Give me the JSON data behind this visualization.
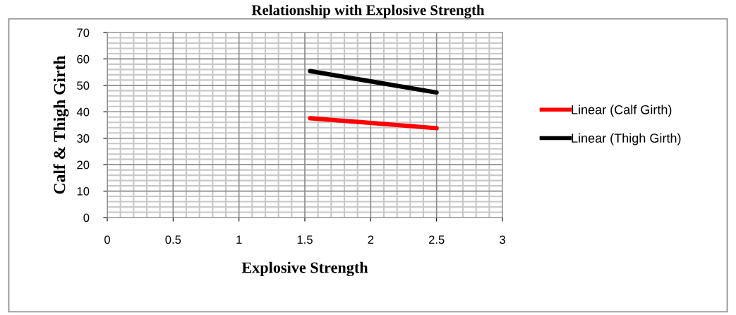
{
  "chart_data": {
    "type": "line",
    "title": "Relationship with Explosive Strength",
    "xlabel": "Explosive Strength",
    "ylabel": "Calf & Thigh Girth",
    "x": [
      1.54,
      2.5
    ],
    "series": [
      {
        "name": "Linear (Calf Girth)",
        "color": "#ff0000",
        "values": [
          37.6,
          33.8
        ]
      },
      {
        "name": "Linear (Thigh Girth)",
        "color": "#000000",
        "values": [
          55.4,
          47.3
        ]
      }
    ],
    "xlim": [
      0,
      3
    ],
    "xticks": [
      0,
      0.5,
      1,
      1.5,
      2,
      2.5,
      3
    ],
    "ylim": [
      0,
      70
    ],
    "yticks": [
      0,
      10,
      20,
      30,
      40,
      50,
      60,
      70
    ],
    "grid": true,
    "legend": "right",
    "marker": "none",
    "line_style": "solid"
  }
}
